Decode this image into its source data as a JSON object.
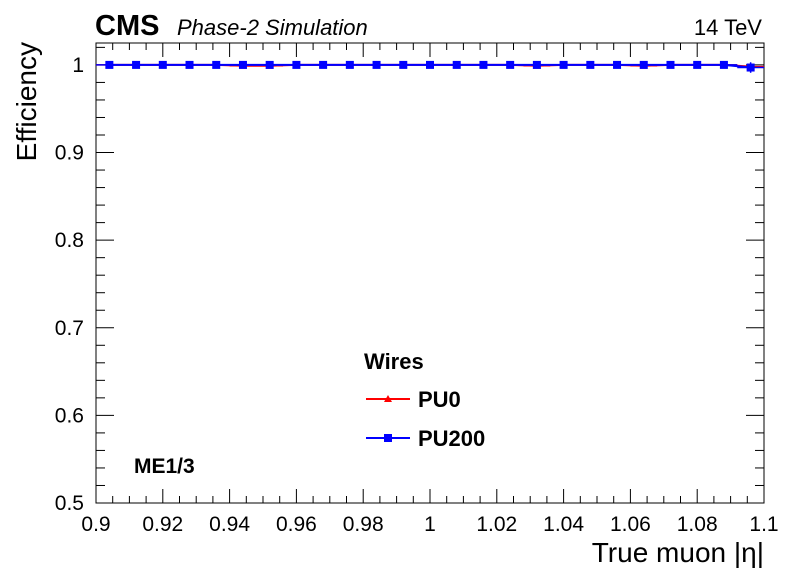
{
  "header": {
    "experiment": "CMS",
    "subtitle": "Phase-2 Simulation",
    "energy": "14 TeV"
  },
  "annotation": "ME1/3",
  "chart_data": {
    "type": "scatter",
    "title": "",
    "xlabel": "True muon |η|",
    "ylabel": "Efficiency",
    "xlim": [
      0.9,
      1.1
    ],
    "ylim": [
      0.5,
      1.025
    ],
    "x_ticks": [
      0.9,
      0.92,
      0.94,
      0.96,
      0.98,
      1.0,
      1.02,
      1.04,
      1.06,
      1.08,
      1.1
    ],
    "x_tick_labels": [
      "0.9",
      "0.92",
      "0.94",
      "0.96",
      "0.98",
      "1",
      "1.02",
      "1.04",
      "1.06",
      "1.08",
      "1.1"
    ],
    "y_ticks": [
      0.5,
      0.6,
      0.7,
      0.8,
      0.9,
      1.0
    ],
    "y_tick_labels": [
      "0.5",
      "0.6",
      "0.7",
      "0.8",
      "0.9",
      "1"
    ],
    "grid": false,
    "legend": {
      "title": "Wires",
      "placement": "bottom-center"
    },
    "x": [
      0.904,
      0.912,
      0.92,
      0.928,
      0.936,
      0.944,
      0.952,
      0.96,
      0.968,
      0.976,
      0.984,
      0.992,
      1.0,
      1.008,
      1.016,
      1.024,
      1.032,
      1.04,
      1.048,
      1.056,
      1.064,
      1.072,
      1.08,
      1.088,
      1.096
    ],
    "series": [
      {
        "name": "PU0",
        "color": "#ff0000",
        "marker": "triangle",
        "values": [
          1.0,
          1.0,
          1.0,
          1.0,
          1.0,
          0.999,
          0.999,
          1.0,
          1.0,
          1.0,
          1.0,
          1.0,
          1.0,
          1.0,
          1.0,
          1.0,
          0.999,
          1.0,
          1.0,
          1.0,
          0.999,
          1.0,
          1.0,
          1.0,
          0.998
        ],
        "errors": [
          0.001,
          0.001,
          0.001,
          0.001,
          0.001,
          0.001,
          0.001,
          0.001,
          0.001,
          0.001,
          0.001,
          0.001,
          0.001,
          0.001,
          0.001,
          0.001,
          0.001,
          0.001,
          0.001,
          0.001,
          0.001,
          0.001,
          0.001,
          0.001,
          0.002
        ]
      },
      {
        "name": "PU200",
        "color": "#0000ff",
        "marker": "square",
        "values": [
          1.0,
          1.0,
          1.0,
          1.0,
          1.0,
          1.0,
          1.0,
          1.0,
          1.0,
          1.0,
          1.0,
          1.0,
          1.0,
          1.0,
          1.0,
          1.0,
          1.0,
          1.0,
          1.0,
          1.0,
          1.0,
          1.0,
          1.0,
          1.0,
          0.997
        ],
        "errors": [
          0.001,
          0.001,
          0.001,
          0.001,
          0.001,
          0.001,
          0.001,
          0.001,
          0.001,
          0.001,
          0.001,
          0.001,
          0.001,
          0.001,
          0.001,
          0.001,
          0.001,
          0.001,
          0.001,
          0.001,
          0.001,
          0.001,
          0.001,
          0.001,
          0.006
        ]
      }
    ]
  }
}
